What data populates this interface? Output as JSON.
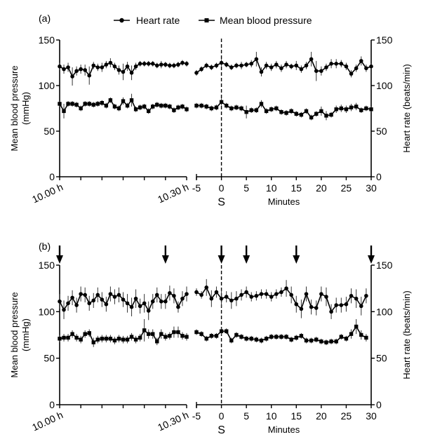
{
  "legend": {
    "heart_rate": "Heart rate",
    "mean_bp": "Mean blood pressure"
  },
  "axes": {
    "left_label_line1": "Mean blood pressure",
    "left_label_line2": "(mmHg)",
    "right_label": "Heart rate (beats/min)",
    "y_ticks": [
      0,
      50,
      100,
      150
    ],
    "left_x_labels": [
      "10.00 h",
      "10.30 h"
    ],
    "right_x_ticks": [
      -5,
      0,
      5,
      10,
      15,
      20,
      25,
      30
    ],
    "stim_label": "S",
    "minutes_label": "Minutes"
  },
  "chart_data": [
    {
      "panel": "(a)",
      "type": "line",
      "title": "",
      "ylabel": "Mean blood pressure (mmHg)",
      "y2label": "Heart rate (beats/min)",
      "ylim": [
        0,
        150
      ],
      "segments": [
        {
          "name": "baseline 10.00 h - 10.30 h",
          "x_minutes": [
            0,
            1,
            2,
            3,
            4,
            5,
            6,
            7,
            8,
            9,
            10,
            11,
            12,
            13,
            14,
            15,
            16,
            17,
            18,
            19,
            20,
            21,
            22,
            23,
            24,
            25,
            26,
            27,
            28,
            29,
            30
          ],
          "series": [
            {
              "name": "Heart rate",
              "values": [
                121,
                118,
                120,
                110,
                116,
                118,
                117,
                111,
                122,
                120,
                120,
                123,
                125,
                121,
                117,
                115,
                121,
                114,
                121,
                124,
                124,
                124,
                124,
                122,
                123,
                123,
                122,
                122,
                123,
                125,
                124
              ],
              "err": [
                4,
                5,
                5,
                10,
                5,
                5,
                6,
                10,
                4,
                4,
                5,
                4,
                5,
                4,
                5,
                9,
                5,
                8,
                4,
                3,
                3,
                3,
                3,
                3,
                4,
                3,
                3,
                3,
                3,
                3,
                3
              ]
            },
            {
              "name": "Mean blood pressure",
              "values": [
                80,
                72,
                80,
                80,
                79,
                75,
                80,
                80,
                79,
                80,
                81,
                78,
                84,
                77,
                75,
                83,
                78,
                84,
                74,
                76,
                77,
                72,
                77,
                79,
                78,
                78,
                77,
                73,
                76,
                77,
                74
              ],
              "err": [
                3,
                8,
                3,
                3,
                3,
                3,
                3,
                3,
                3,
                3,
                3,
                3,
                3,
                3,
                3,
                4,
                3,
                7,
                3,
                3,
                3,
                3,
                3,
                3,
                3,
                3,
                3,
                3,
                3,
                3,
                3
              ]
            }
          ]
        },
        {
          "name": "Minutes relative to S",
          "x_minutes": [
            -5,
            -4,
            -3,
            -2,
            -1,
            0,
            1,
            2,
            3,
            4,
            5,
            6,
            7,
            8,
            9,
            10,
            11,
            12,
            13,
            14,
            15,
            16,
            17,
            18,
            19,
            20,
            21,
            22,
            23,
            24,
            25,
            26,
            27,
            28,
            29,
            30
          ],
          "series": [
            {
              "name": "Heart rate",
              "values": [
                114,
                118,
                122,
                120,
                122,
                125,
                123,
                120,
                122,
                122,
                123,
                124,
                129,
                115,
                122,
                120,
                123,
                119,
                123,
                121,
                122,
                118,
                122,
                129,
                116,
                116,
                120,
                124,
                124,
                124,
                121,
                113,
                119,
                127,
                119,
                121
              ],
              "err": [
                3,
                3,
                3,
                3,
                3,
                4,
                3,
                3,
                3,
                4,
                3,
                4,
                8,
                5,
                4,
                4,
                4,
                4,
                4,
                3,
                5,
                4,
                4,
                8,
                11,
                5,
                4,
                5,
                5,
                4,
                4,
                4,
                4,
                5,
                4,
                3
              ]
            },
            {
              "name": "Mean blood pressure",
              "values": [
                78,
                78,
                77,
                75,
                76,
                82,
                78,
                75,
                76,
                75,
                71,
                73,
                73,
                80,
                72,
                74,
                75,
                71,
                70,
                72,
                69,
                68,
                72,
                65,
                69,
                72,
                67,
                68,
                74,
                75,
                74,
                76,
                77,
                73,
                75,
                74
              ],
              "err": [
                3,
                3,
                3,
                3,
                3,
                4,
                3,
                3,
                3,
                3,
                7,
                3,
                3,
                4,
                3,
                3,
                3,
                3,
                3,
                3,
                3,
                3,
                3,
                3,
                3,
                5,
                5,
                3,
                4,
                4,
                4,
                4,
                4,
                3,
                3,
                3
              ]
            }
          ]
        }
      ],
      "dashed_line_at": 0
    },
    {
      "panel": "(b)",
      "type": "line",
      "title": "",
      "ylabel": "Mean blood pressure (mmHg)",
      "y2label": "Heart rate (beats/min)",
      "ylim": [
        0,
        150
      ],
      "segments": [
        {
          "name": "baseline 10.00 h - 10.30 h",
          "x_minutes": [
            0,
            1,
            2,
            3,
            4,
            5,
            6,
            7,
            8,
            9,
            10,
            11,
            12,
            13,
            14,
            15,
            16,
            17,
            18,
            19,
            20,
            21,
            22,
            23,
            24,
            25,
            26,
            27,
            28,
            29,
            30
          ],
          "series": [
            {
              "name": "Heart rate",
              "values": [
                111,
                102,
                109,
                115,
                107,
                119,
                118,
                109,
                112,
                118,
                113,
                108,
                119,
                116,
                118,
                113,
                109,
                105,
                114,
                106,
                109,
                101,
                111,
                118,
                111,
                111,
                120,
                117,
                105,
                114,
                119
              ],
              "err": [
                8,
                10,
                8,
                8,
                8,
                8,
                8,
                8,
                8,
                8,
                8,
                8,
                8,
                8,
                8,
                8,
                10,
                10,
                10,
                8,
                10,
                10,
                8,
                8,
                8,
                8,
                8,
                8,
                6,
                8,
                8
              ]
            },
            {
              "name": "Mean blood pressure",
              "values": [
                71,
                72,
                72,
                76,
                72,
                70,
                76,
                77,
                67,
                70,
                71,
                71,
                71,
                69,
                71,
                70,
                70,
                73,
                70,
                72,
                80,
                76,
                76,
                68,
                76,
                73,
                74,
                78,
                78,
                74,
                73
              ],
              "err": [
                4,
                4,
                4,
                4,
                4,
                4,
                4,
                4,
                5,
                4,
                4,
                4,
                4,
                4,
                4,
                4,
                4,
                4,
                4,
                4,
                12,
                5,
                5,
                4,
                5,
                4,
                4,
                6,
                6,
                4,
                4
              ]
            }
          ]
        },
        {
          "name": "Minutes relative to S",
          "x_minutes": [
            -5,
            -4,
            -3,
            -2,
            -1,
            0,
            1,
            2,
            3,
            4,
            5,
            6,
            7,
            8,
            9,
            10,
            11,
            12,
            13,
            14,
            15,
            16,
            17,
            18,
            19,
            20,
            21,
            22,
            23,
            24,
            25,
            26,
            27,
            28,
            29
          ],
          "series": [
            {
              "name": "Heart rate",
              "values": [
                121,
                118,
                126,
                114,
                121,
                114,
                116,
                112,
                114,
                118,
                121,
                116,
                117,
                119,
                119,
                116,
                119,
                121,
                125,
                118,
                108,
                103,
                119,
                105,
                104,
                119,
                116,
                100,
                107,
                107,
                108,
                117,
                114,
                106,
                117
              ],
              "err": [
                4,
                4,
                9,
                9,
                6,
                9,
                6,
                9,
                8,
                6,
                6,
                5,
                5,
                5,
                5,
                5,
                5,
                5,
                9,
                9,
                9,
                10,
                8,
                8,
                8,
                8,
                10,
                8,
                8,
                8,
                8,
                8,
                10,
                10,
                8
              ]
            },
            {
              "name": "Mean blood pressure",
              "values": [
                78,
                76,
                71,
                74,
                74,
                79,
                79,
                69,
                75,
                73,
                71,
                71,
                70,
                69,
                71,
                73,
                73,
                73,
                73,
                70,
                72,
                74,
                69,
                69,
                70,
                68,
                67,
                68,
                68,
                73,
                71,
                76,
                84,
                75,
                72
              ],
              "err": [
                3,
                3,
                3,
                3,
                3,
                4,
                3,
                3,
                3,
                3,
                3,
                3,
                3,
                3,
                3,
                3,
                3,
                3,
                3,
                3,
                3,
                3,
                3,
                3,
                3,
                3,
                3,
                3,
                3,
                3,
                3,
                5,
                8,
                5,
                4
              ]
            }
          ]
        }
      ],
      "dashed_line_at": 0,
      "arrows": {
        "left_segment_minutes": [
          0,
          25
        ],
        "right_segment_minutes": [
          0,
          5,
          15,
          30
        ]
      }
    }
  ]
}
